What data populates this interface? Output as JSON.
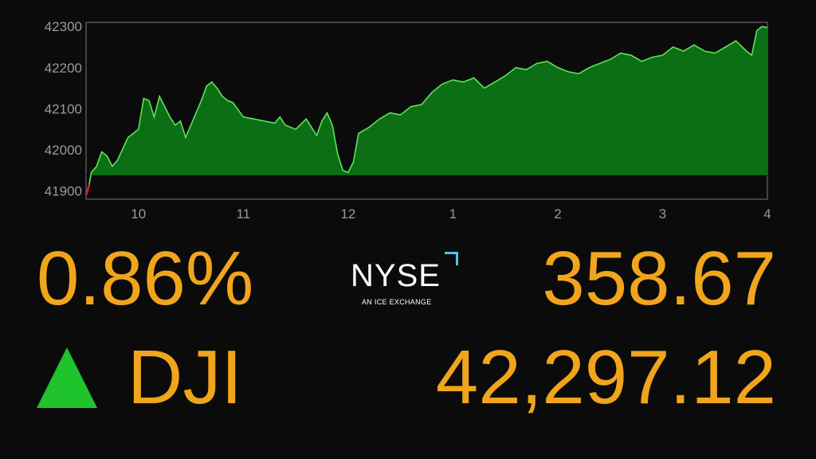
{
  "chart_data": {
    "type": "area",
    "ylim": [
      41880,
      42310
    ],
    "baseline": 41938,
    "yticks": [
      41900,
      42000,
      42100,
      42200,
      42300
    ],
    "yticklabels": [
      "41900",
      "42000",
      "42100",
      "42200",
      "42300"
    ],
    "xlim": [
      9.5,
      16
    ],
    "xticks": [
      10,
      11,
      12,
      13,
      14,
      15,
      16
    ],
    "xticklabels": [
      "10",
      "11",
      "12",
      "1",
      "2",
      "3",
      "4"
    ],
    "colors": {
      "up_fill": "#0c6f16",
      "up_line": "#5fe35a",
      "down": "#e02020",
      "grid": "#555555",
      "labels": "#9a9a9a"
    },
    "x": [
      9.5,
      9.53,
      9.55,
      9.6,
      9.65,
      9.7,
      9.75,
      9.8,
      9.9,
      10.0,
      10.05,
      10.1,
      10.15,
      10.2,
      10.25,
      10.3,
      10.35,
      10.4,
      10.45,
      10.5,
      10.55,
      10.6,
      10.65,
      10.7,
      10.75,
      10.8,
      10.85,
      10.9,
      11.0,
      11.1,
      11.2,
      11.3,
      11.35,
      11.4,
      11.5,
      11.6,
      11.7,
      11.75,
      11.8,
      11.85,
      11.9,
      11.95,
      12.0,
      12.05,
      12.1,
      12.2,
      12.3,
      12.4,
      12.5,
      12.6,
      12.7,
      12.8,
      12.9,
      13.0,
      13.1,
      13.2,
      13.3,
      13.4,
      13.5,
      13.6,
      13.7,
      13.8,
      13.9,
      14.0,
      14.1,
      14.2,
      14.3,
      14.4,
      14.5,
      14.6,
      14.7,
      14.8,
      14.9,
      15.0,
      15.1,
      15.2,
      15.3,
      15.4,
      15.5,
      15.6,
      15.7,
      15.8,
      15.85,
      15.9,
      15.95,
      16.0
    ],
    "y": [
      41890,
      41915,
      41945,
      41960,
      41995,
      41985,
      41960,
      41975,
      42030,
      42050,
      42125,
      42120,
      42080,
      42130,
      42105,
      42080,
      42060,
      42070,
      42030,
      42060,
      42090,
      42120,
      42155,
      42165,
      42150,
      42130,
      42120,
      42115,
      42080,
      42075,
      42070,
      42065,
      42080,
      42060,
      42050,
      42075,
      42035,
      42070,
      42090,
      42060,
      41990,
      41950,
      41945,
      41970,
      42040,
      42055,
      42075,
      42090,
      42085,
      42105,
      42110,
      42140,
      42160,
      42170,
      42165,
      42175,
      42150,
      42165,
      42180,
      42200,
      42195,
      42210,
      42215,
      42200,
      42190,
      42185,
      42200,
      42210,
      42220,
      42235,
      42230,
      42215,
      42225,
      42230,
      42250,
      42240,
      42255,
      42240,
      42235,
      42250,
      42265,
      42240,
      42230,
      42290,
      42300,
      42297
    ]
  },
  "stats": {
    "percent_change": "0.86%",
    "points_change": "358.67",
    "symbol": "DJI",
    "index_value": "42,297.12",
    "direction": "up",
    "up_color": "#1fc32c",
    "value_color": "#f0a51c"
  },
  "logo": {
    "name": "NYSE",
    "wordmark": "NYSE",
    "tagline": "AN ICE EXCHANGE",
    "accent_color": "#4fc3e8"
  }
}
